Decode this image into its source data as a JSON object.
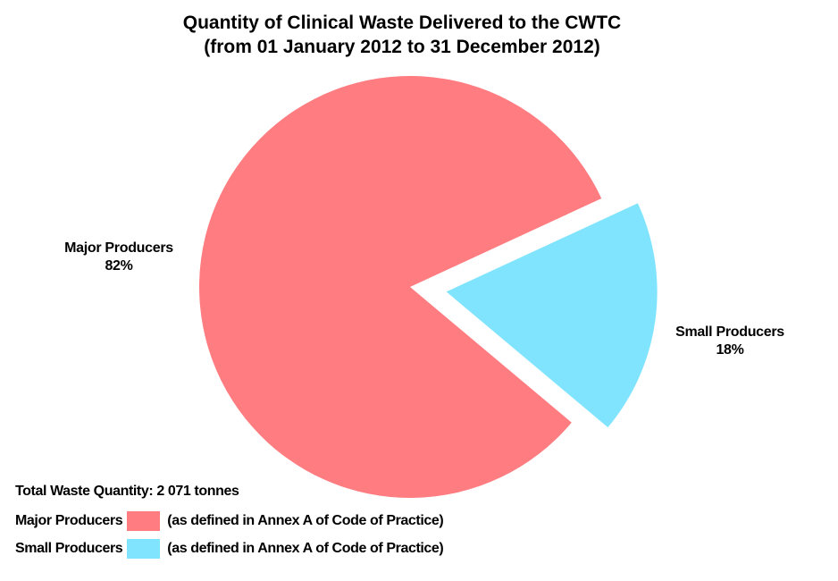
{
  "chart_data": {
    "type": "pie",
    "title": [
      "Quantity of Clinical Waste Delivered to the CWTC",
      "(from 01 January 2012 to 31 December 2012)"
    ],
    "slices": [
      {
        "label": "Major Producers",
        "value": 82,
        "display": "82%",
        "color": "#FF7C80",
        "exploded": false
      },
      {
        "label": "Small Producers",
        "value": 18,
        "display": "18%",
        "color": "#80E4FF",
        "exploded": true
      }
    ],
    "legend": {
      "total": "Total Waste Quantity: 2 071 tonnes",
      "items": [
        {
          "label": "Major Producers",
          "note": "(as defined in Annex A of Code of Practice)",
          "color": "#FF7C80"
        },
        {
          "label": "Small Producers",
          "note": "(as defined in Annex A of Code of Practice)",
          "color": "#80E4FF"
        }
      ],
      "placement": "bottom-left"
    }
  }
}
